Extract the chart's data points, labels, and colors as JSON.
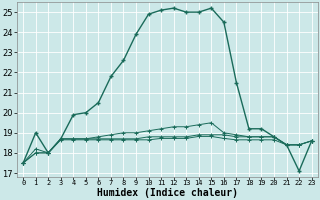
{
  "xlabel": "Humidex (Indice chaleur)",
  "background_color": "#cce8e8",
  "grid_color": "#b0d0d0",
  "line_color": "#1a6b5a",
  "xlim": [
    -0.5,
    23.5
  ],
  "ylim": [
    16.8,
    25.5
  ],
  "xtick_labels": [
    "0",
    "1",
    "2",
    "3",
    "4",
    "5",
    "6",
    "7",
    "8",
    "9",
    "10",
    "11",
    "12",
    "13",
    "14",
    "15",
    "16",
    "17",
    "18",
    "19",
    "20",
    "21",
    "22",
    "23"
  ],
  "yticks": [
    17,
    18,
    19,
    20,
    21,
    22,
    23,
    24,
    25
  ],
  "series": [
    [
      17.5,
      19.0,
      18.0,
      18.7,
      19.9,
      20.0,
      20.5,
      21.8,
      22.6,
      23.9,
      24.9,
      25.1,
      25.2,
      25.0,
      25.0,
      25.2,
      24.5,
      21.5,
      19.2,
      19.2,
      18.8,
      18.4,
      17.1,
      18.6
    ],
    [
      17.5,
      18.2,
      18.0,
      18.7,
      18.7,
      18.7,
      18.8,
      18.9,
      19.0,
      19.0,
      19.1,
      19.2,
      19.3,
      19.3,
      19.4,
      19.5,
      19.0,
      18.9,
      18.8,
      18.8,
      18.8,
      18.4,
      18.4,
      18.6
    ],
    [
      17.5,
      18.0,
      18.0,
      18.7,
      18.7,
      18.7,
      18.7,
      18.7,
      18.7,
      18.7,
      18.8,
      18.8,
      18.8,
      18.8,
      18.9,
      18.9,
      18.9,
      18.8,
      18.8,
      18.8,
      18.8,
      18.4,
      18.4,
      18.6
    ],
    [
      17.5,
      18.0,
      18.0,
      18.65,
      18.65,
      18.65,
      18.65,
      18.65,
      18.65,
      18.65,
      18.65,
      18.72,
      18.72,
      18.72,
      18.82,
      18.82,
      18.72,
      18.65,
      18.65,
      18.65,
      18.65,
      18.4,
      18.4,
      18.6
    ]
  ]
}
